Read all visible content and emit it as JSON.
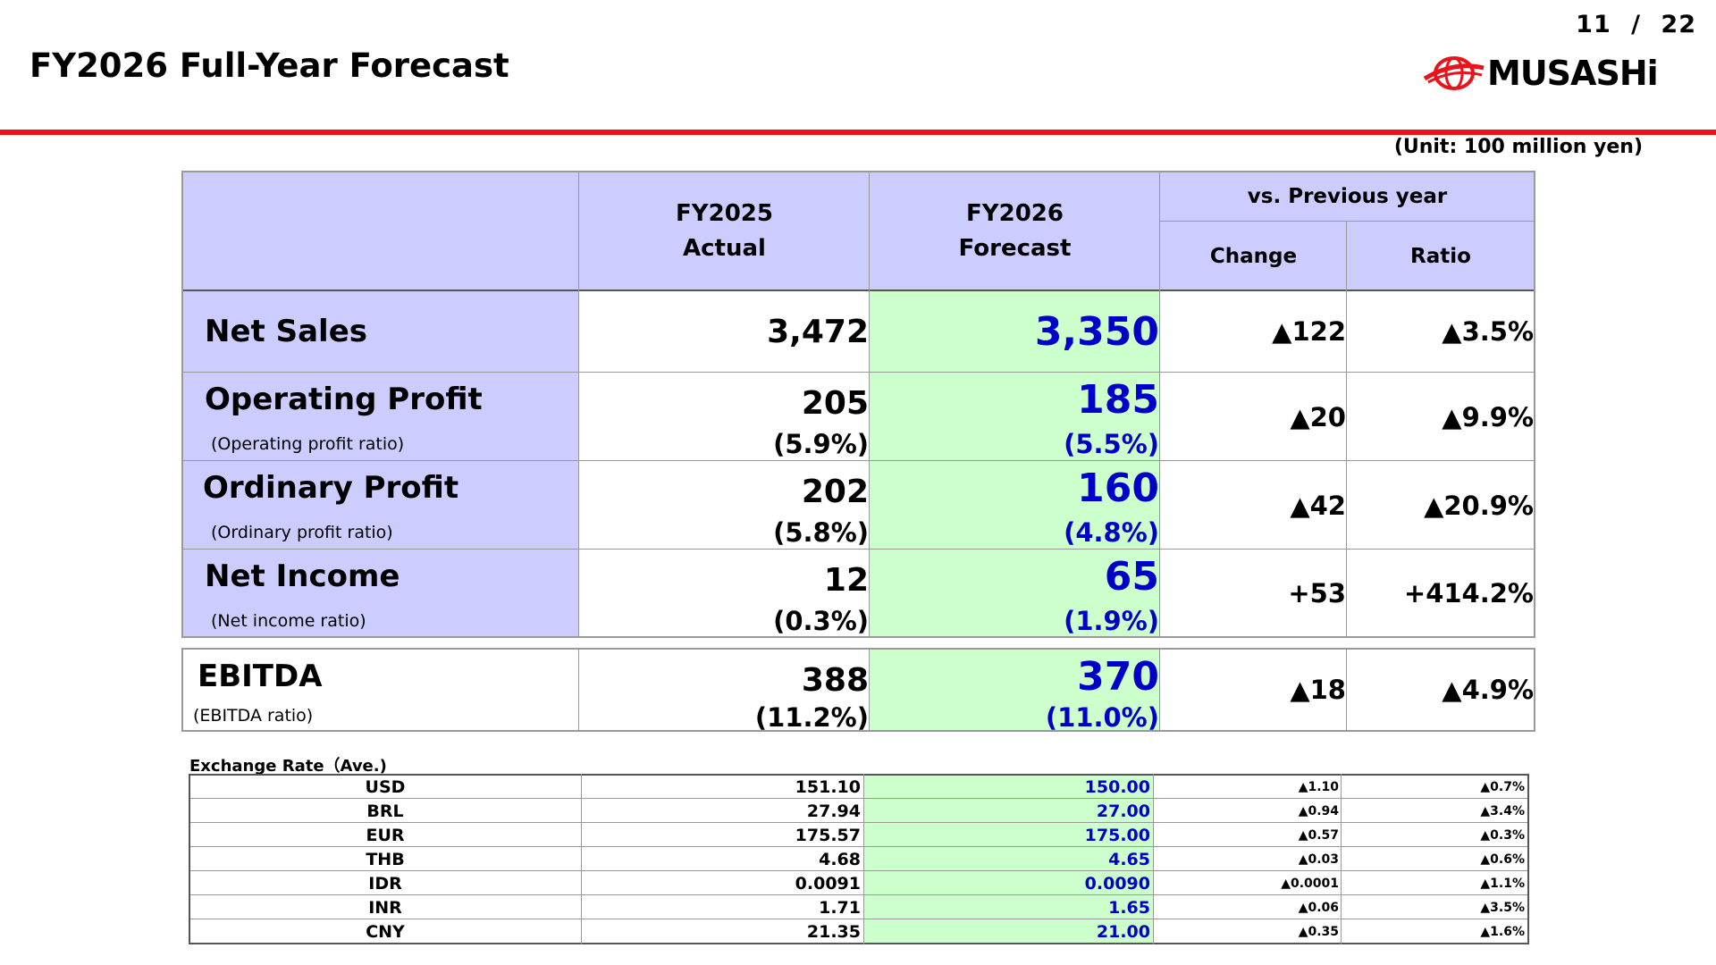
{
  "page": {
    "number": "11",
    "separator": "/",
    "total": "22"
  },
  "title": "FY2026 Full-Year Forecast",
  "logo": {
    "text": "MUSASHi",
    "brand_color": "#e8141c"
  },
  "unit": "(Unit: 100 million yen)",
  "headers": {
    "actual": [
      "FY2025",
      "Actual"
    ],
    "forecast": [
      "FY2026",
      "Forecast"
    ],
    "vs_prev": "vs. Previous year",
    "change": "Change",
    "ratio": "Ratio"
  },
  "rows": {
    "net_sales": {
      "label": "Net Sales",
      "actual": "3,472",
      "forecast": "3,350",
      "change": "▲122",
      "ratio": "▲3.5%"
    },
    "operating_profit": {
      "label": "Operating Profit",
      "sublabel": "(Operating profit ratio)",
      "actual": "205",
      "actual_ratio": "(5.9%)",
      "forecast": "185",
      "forecast_ratio": "(5.5%)",
      "change": "▲20",
      "ratio": "▲9.9%"
    },
    "ordinary_profit": {
      "label": "Ordinary Profit",
      "sublabel": "(Ordinary profit ratio)",
      "actual": "202",
      "actual_ratio": "(5.8%)",
      "forecast": "160",
      "forecast_ratio": "(4.8%)",
      "change": "▲42",
      "ratio": "▲20.9%"
    },
    "net_income": {
      "label": "Net Income",
      "sublabel": "(Net income ratio)",
      "actual": "12",
      "actual_ratio": "(0.3%)",
      "forecast": "65",
      "forecast_ratio": "(1.9%)",
      "change": "+53",
      "ratio": "+414.2%"
    },
    "ebitda": {
      "label": "EBITDA",
      "sublabel": "(EBITDA ratio)",
      "actual": "388",
      "actual_ratio": "(11.2%)",
      "forecast": "370",
      "forecast_ratio": "(11.0%)",
      "change": "▲18",
      "ratio": "▲4.9%"
    }
  },
  "exchange": {
    "title": "Exchange Rate（Ave.)",
    "rows": [
      {
        "currency": "USD",
        "actual": "151.10",
        "forecast": "150.00",
        "change": "▲1.10",
        "ratio": "▲0.7%"
      },
      {
        "currency": "BRL",
        "actual": "27.94",
        "forecast": "27.00",
        "change": "▲0.94",
        "ratio": "▲3.4%"
      },
      {
        "currency": "EUR",
        "actual": "175.57",
        "forecast": "175.00",
        "change": "▲0.57",
        "ratio": "▲0.3%"
      },
      {
        "currency": "THB",
        "actual": "4.68",
        "forecast": "4.65",
        "change": "▲0.03",
        "ratio": "▲0.6%"
      },
      {
        "currency": "IDR",
        "actual": "0.0091",
        "forecast": "0.0090",
        "change": "▲0.0001",
        "ratio": "▲1.1%"
      },
      {
        "currency": "INR",
        "actual": "1.71",
        "forecast": "1.65",
        "change": "▲0.06",
        "ratio": "▲3.5%"
      },
      {
        "currency": "CNY",
        "actual": "21.35",
        "forecast": "21.00",
        "change": "▲0.35",
        "ratio": "▲1.6%"
      }
    ]
  },
  "colors": {
    "header_bg": "#ccccff",
    "forecast_bg": "#ccffcc",
    "forecast_text": "#0000c8",
    "accent_line": "#e8141c"
  }
}
